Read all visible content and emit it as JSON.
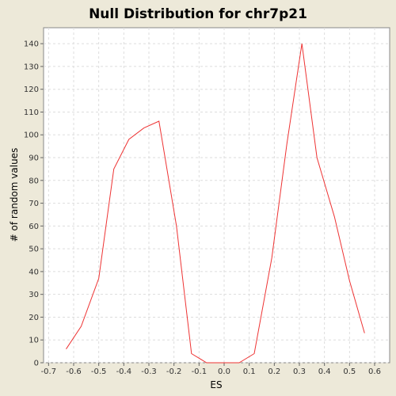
{
  "chart_data": {
    "type": "line",
    "title": "Null Distribution for chr7p21",
    "xlabel": "ES",
    "ylabel": "# of random values",
    "xlim": [
      -0.72,
      0.66
    ],
    "ylim": [
      0,
      147
    ],
    "xticks": [
      -0.7,
      -0.6,
      -0.5,
      -0.4,
      -0.3,
      -0.2,
      -0.1,
      0.0,
      0.1,
      0.2,
      0.3,
      0.4,
      0.5,
      0.6
    ],
    "xtick_labels": [
      "-0.7",
      "-0.6",
      "-0.5",
      "-0.4",
      "-0.3",
      "-0.2",
      "-0.1",
      "0.0",
      "0.1",
      "0.2",
      "0.3",
      "0.4",
      "0.5",
      "0.6"
    ],
    "yticks": [
      0,
      10,
      20,
      30,
      40,
      50,
      60,
      70,
      80,
      90,
      100,
      110,
      120,
      130,
      140
    ],
    "ytick_labels": [
      "0",
      "10",
      "20",
      "30",
      "40",
      "50",
      "60",
      "70",
      "80",
      "90",
      "100",
      "110",
      "120",
      "130",
      "140"
    ],
    "grid": true,
    "series_color": "#ee3333",
    "x": [
      -0.63,
      -0.57,
      -0.5,
      -0.44,
      -0.38,
      -0.32,
      -0.26,
      -0.19,
      -0.13,
      -0.07,
      0.0,
      0.06,
      0.12,
      0.19,
      0.25,
      0.31,
      0.37,
      0.44,
      0.5,
      0.56
    ],
    "y": [
      6,
      16,
      37,
      85,
      98,
      103,
      106,
      60,
      4,
      0,
      0,
      0,
      4,
      46,
      96,
      140,
      90,
      64,
      36,
      13
    ]
  }
}
